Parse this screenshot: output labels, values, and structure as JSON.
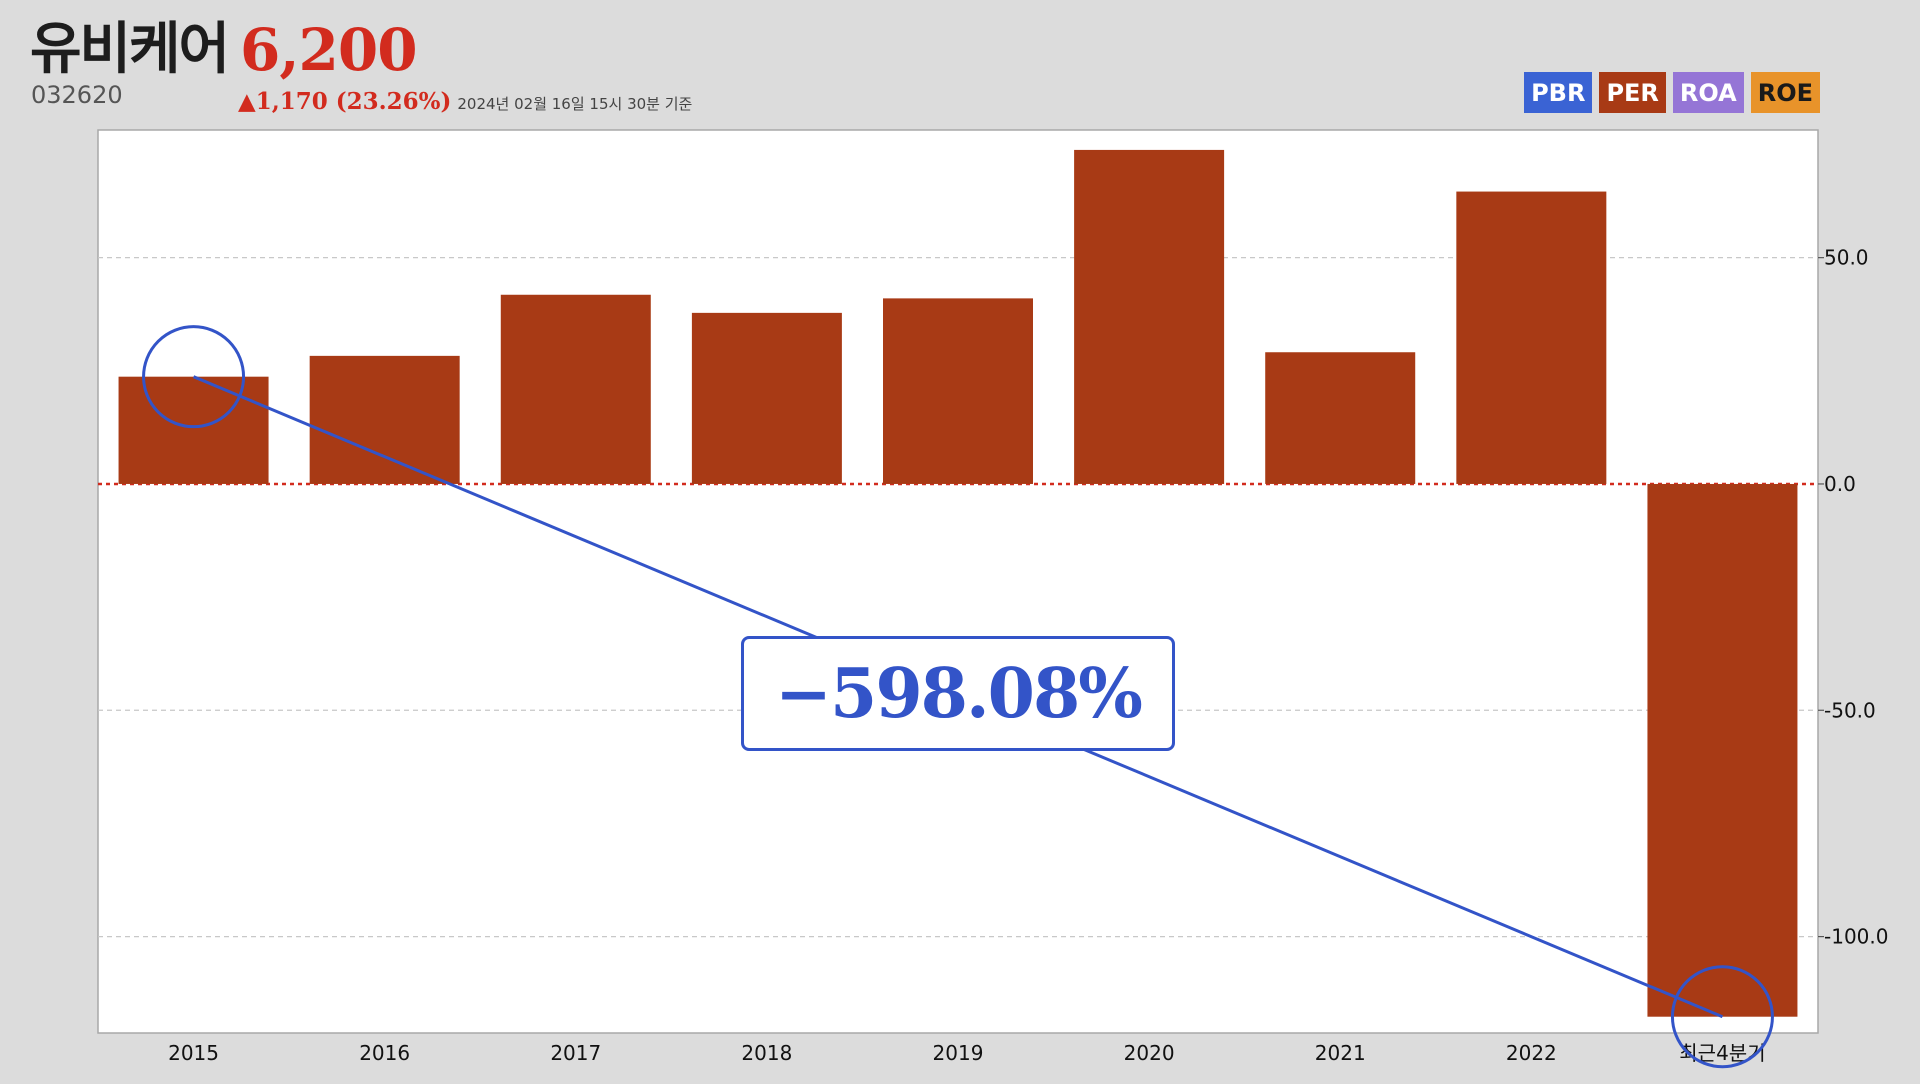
{
  "header": {
    "company_name": "유비케어",
    "price": "6,200",
    "code": "032620",
    "change": "▲1,170 (23.26%)",
    "as_of": "2024년 02월 16일 15시 30분 기준"
  },
  "legend": [
    {
      "label": "PBR",
      "bg": "#3a63d4",
      "fg": "#ffffff"
    },
    {
      "label": "PER",
      "bg": "#a83a15",
      "fg": "#ffffff"
    },
    {
      "label": "ROA",
      "bg": "#9575d6",
      "fg": "#ffffff"
    },
    {
      "label": "ROE",
      "bg": "#e8932a",
      "fg": "#1a1a1a"
    }
  ],
  "annotation": {
    "text": "−598.08%",
    "color": "#3354c8"
  },
  "chart_data": {
    "type": "bar",
    "categories": [
      "2015",
      "2016",
      "2017",
      "2018",
      "2019",
      "2020",
      "2021",
      "2022",
      "최근4분기"
    ],
    "series": [
      {
        "name": "PER",
        "values": [
          23.7,
          28.3,
          41.8,
          37.8,
          41.0,
          73.8,
          29.1,
          64.6,
          -117.7
        ],
        "color": "#a83a15"
      }
    ],
    "y_ticks": [
      50.0,
      0.0,
      -50.0,
      -100.0
    ],
    "y_tick_labels": [
      "50.0",
      "0.0",
      "-50.0",
      "-100.0"
    ],
    "ylim": [
      -121.3,
      78.2
    ],
    "grid": true,
    "zero_line_color": "#d22b1e"
  }
}
